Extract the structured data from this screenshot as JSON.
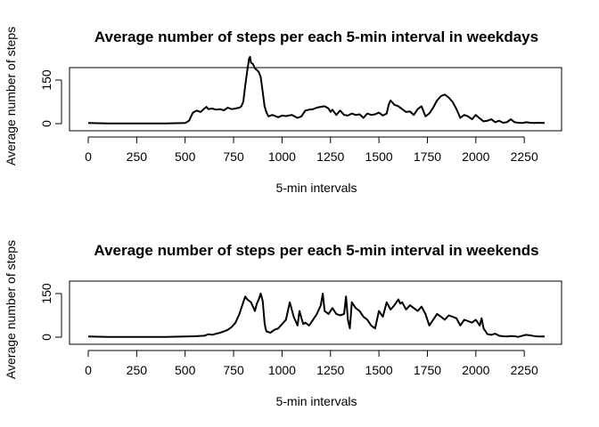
{
  "chart_data": [
    {
      "type": "line",
      "title": "Average number of steps per each 5-min interval in weekdays",
      "xlabel": "5-min intervals",
      "ylabel": "Average number of steps",
      "xlim": [
        0,
        2355
      ],
      "ylim": [
        0,
        230
      ],
      "xticks": [
        0,
        250,
        500,
        750,
        1000,
        1250,
        1500,
        1750,
        2000,
        2250
      ],
      "yticks": [
        0,
        150
      ],
      "grid": false,
      "color": "#000000",
      "series": [
        {
          "x": [
            0,
            100,
            200,
            300,
            400,
            500,
            520,
            540,
            560,
            580,
            600,
            610,
            620,
            640,
            660,
            680,
            700,
            720,
            740,
            760,
            780,
            790,
            800,
            810,
            820,
            830,
            835,
            840,
            850,
            860,
            870,
            880,
            890,
            900,
            910,
            920,
            930,
            950,
            980,
            1000,
            1020,
            1050,
            1080,
            1100,
            1120,
            1140,
            1160,
            1180,
            1200,
            1220,
            1240,
            1250,
            1260,
            1280,
            1300,
            1320,
            1340,
            1360,
            1380,
            1400,
            1420,
            1440,
            1460,
            1480,
            1500,
            1520,
            1540,
            1550,
            1560,
            1580,
            1600,
            1620,
            1640,
            1660,
            1680,
            1700,
            1720,
            1740,
            1760,
            1780,
            1800,
            1820,
            1840,
            1850,
            1860,
            1880,
            1900,
            1920,
            1940,
            1960,
            1980,
            2000,
            2020,
            2040,
            2060,
            2080,
            2100,
            2120,
            2140,
            2160,
            2180,
            2200,
            2220,
            2240,
            2260,
            2280,
            2300,
            2320,
            2355
          ],
          "y": [
            2,
            1,
            1,
            1,
            1,
            2,
            10,
            38,
            45,
            40,
            52,
            58,
            50,
            52,
            48,
            50,
            46,
            55,
            50,
            52,
            55,
            60,
            75,
            130,
            180,
            225,
            230,
            210,
            205,
            190,
            185,
            178,
            160,
            110,
            60,
            38,
            25,
            30,
            22,
            28,
            26,
            30,
            20,
            25,
            45,
            48,
            50,
            55,
            58,
            60,
            52,
            40,
            48,
            30,
            45,
            30,
            28,
            35,
            30,
            32,
            20,
            35,
            30,
            32,
            38,
            28,
            35,
            65,
            80,
            65,
            60,
            50,
            40,
            42,
            30,
            50,
            60,
            25,
            35,
            55,
            80,
            95,
            100,
            95,
            90,
            75,
            50,
            20,
            30,
            25,
            15,
            30,
            18,
            8,
            10,
            15,
            5,
            10,
            3,
            5,
            15,
            5,
            3,
            2,
            5,
            3,
            2,
            3,
            2
          ]
        }
      ]
    },
    {
      "type": "line",
      "title": "Average number of steps per each 5-min interval in weekends",
      "xlabel": "5-min intervals",
      "ylabel": "Average number of steps",
      "xlim": [
        0,
        2355
      ],
      "ylim": [
        0,
        230
      ],
      "xticks": [
        0,
        250,
        500,
        750,
        1000,
        1250,
        1500,
        1750,
        2000,
        2250
      ],
      "yticks": [
        0,
        150
      ],
      "grid": false,
      "color": "#000000",
      "series": [
        {
          "x": [
            0,
            100,
            200,
            300,
            400,
            500,
            550,
            600,
            620,
            640,
            660,
            680,
            700,
            720,
            740,
            760,
            780,
            800,
            810,
            820,
            840,
            860,
            870,
            880,
            890,
            900,
            910,
            915,
            920,
            940,
            960,
            980,
            1000,
            1020,
            1040,
            1060,
            1080,
            1090,
            1100,
            1110,
            1120,
            1140,
            1160,
            1180,
            1200,
            1210,
            1220,
            1240,
            1260,
            1280,
            1300,
            1320,
            1330,
            1340,
            1350,
            1360,
            1380,
            1400,
            1420,
            1440,
            1460,
            1480,
            1500,
            1520,
            1540,
            1560,
            1580,
            1600,
            1610,
            1620,
            1640,
            1660,
            1680,
            1700,
            1720,
            1740,
            1760,
            1780,
            1800,
            1820,
            1840,
            1860,
            1880,
            1900,
            1920,
            1940,
            1960,
            1980,
            2000,
            2020,
            2030,
            2040,
            2060,
            2080,
            2100,
            2120,
            2140,
            2160,
            2180,
            2200,
            2220,
            2240,
            2260,
            2280,
            2300,
            2320,
            2355
          ],
          "y": [
            2,
            1,
            1,
            1,
            1,
            2,
            3,
            5,
            10,
            8,
            12,
            15,
            20,
            25,
            35,
            50,
            80,
            120,
            140,
            130,
            120,
            90,
            115,
            130,
            150,
            125,
            50,
            30,
            20,
            15,
            25,
            30,
            45,
            60,
            120,
            70,
            40,
            90,
            65,
            45,
            50,
            40,
            60,
            80,
            110,
            150,
            90,
            80,
            100,
            80,
            75,
            80,
            140,
            60,
            30,
            120,
            100,
            90,
            70,
            60,
            40,
            30,
            90,
            70,
            120,
            95,
            110,
            130,
            115,
            120,
            95,
            110,
            100,
            90,
            105,
            80,
            40,
            60,
            80,
            70,
            60,
            75,
            70,
            65,
            40,
            60,
            55,
            50,
            60,
            40,
            65,
            30,
            10,
            8,
            12,
            5,
            3,
            2,
            4,
            3,
            1,
            5,
            8,
            6,
            4,
            2,
            2
          ]
        }
      ]
    }
  ]
}
